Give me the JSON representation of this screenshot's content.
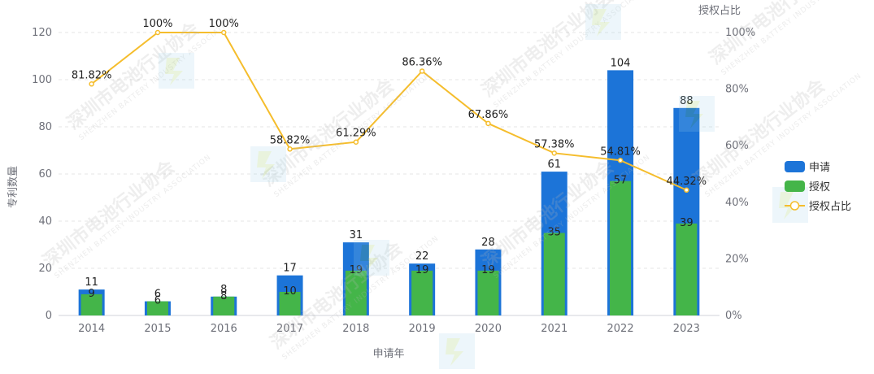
{
  "chart_data": {
    "type": "bar",
    "categories": [
      "2014",
      "2015",
      "2016",
      "2017",
      "2018",
      "2019",
      "2020",
      "2021",
      "2022",
      "2023"
    ],
    "series": [
      {
        "name": "申请",
        "type": "bar",
        "values": [
          11,
          6,
          8,
          17,
          31,
          22,
          28,
          61,
          104,
          88
        ],
        "color": "#1c74d8"
      },
      {
        "name": "授权",
        "type": "bar",
        "values": [
          9,
          6,
          8,
          10,
          19,
          19,
          19,
          35,
          57,
          39
        ],
        "color": "#44b549"
      },
      {
        "name": "授权占比",
        "type": "line",
        "axis": "right",
        "values": [
          81.82,
          100,
          100,
          58.82,
          61.29,
          86.36,
          67.86,
          57.38,
          54.81,
          44.32
        ],
        "labels": [
          "81.82%",
          "100%",
          "100%",
          "58.82%",
          "61.29%",
          "86.36%",
          "67.86%",
          "57.38%",
          "54.81%",
          "44.32%"
        ],
        "color": "#f5bd2c"
      }
    ],
    "xlabel": "申请年",
    "ylabel": "专利数量",
    "y2label": "授权占比",
    "ylim": [
      0,
      120
    ],
    "yticks": [
      "0",
      "20",
      "40",
      "60",
      "80",
      "100",
      "120"
    ],
    "y2lim": [
      0,
      100
    ],
    "y2ticks": [
      "0%",
      "20%",
      "40%",
      "60%",
      "80%",
      "100%"
    ],
    "grid": true,
    "legend": "right"
  },
  "watermark": {
    "text": "深圳市电池行业协会",
    "subtext": "SHENZHEN BATTERY INDUSTRY ASSOCIATION"
  }
}
